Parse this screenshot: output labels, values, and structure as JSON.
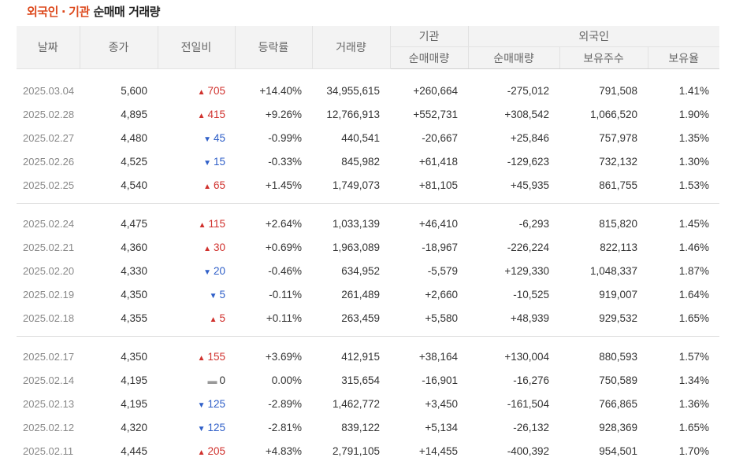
{
  "title": {
    "part1": "외국인",
    "dot": "·",
    "part2": "기관",
    "part3": "순매매 거래량"
  },
  "headers": {
    "date": "날짜",
    "close": "종가",
    "change": "전일비",
    "rate": "등락률",
    "volume": "거래량",
    "institution": "기관",
    "inst_net": "순매매량",
    "foreign": "외국인",
    "foreign_net": "순매매량",
    "foreign_hold": "보유주수",
    "foreign_ratio": "보유율"
  },
  "colors": {
    "up": "#d0312d",
    "down": "#2f5fc8",
    "title_accent": "#dd4a1e",
    "header_bg": "#f3f3f3"
  },
  "groups": [
    [
      {
        "date": "2025.03.04",
        "close": "5,600",
        "dir": "up",
        "change": "705",
        "rate": "+14.40%",
        "volume": "34,955,615",
        "inst": "+260,664",
        "foreign_net": "-275,012",
        "hold": "791,508",
        "ratio": "1.41%"
      },
      {
        "date": "2025.02.28",
        "close": "4,895",
        "dir": "up",
        "change": "415",
        "rate": "+9.26%",
        "volume": "12,766,913",
        "inst": "+552,731",
        "foreign_net": "+308,542",
        "hold": "1,066,520",
        "ratio": "1.90%"
      },
      {
        "date": "2025.02.27",
        "close": "4,480",
        "dir": "down",
        "change": "45",
        "rate": "-0.99%",
        "volume": "440,541",
        "inst": "-20,667",
        "foreign_net": "+25,846",
        "hold": "757,978",
        "ratio": "1.35%"
      },
      {
        "date": "2025.02.26",
        "close": "4,525",
        "dir": "down",
        "change": "15",
        "rate": "-0.33%",
        "volume": "845,982",
        "inst": "+61,418",
        "foreign_net": "-129,623",
        "hold": "732,132",
        "ratio": "1.30%"
      },
      {
        "date": "2025.02.25",
        "close": "4,540",
        "dir": "up",
        "change": "65",
        "rate": "+1.45%",
        "volume": "1,749,073",
        "inst": "+81,105",
        "foreign_net": "+45,935",
        "hold": "861,755",
        "ratio": "1.53%"
      }
    ],
    [
      {
        "date": "2025.02.24",
        "close": "4,475",
        "dir": "up",
        "change": "115",
        "rate": "+2.64%",
        "volume": "1,033,139",
        "inst": "+46,410",
        "foreign_net": "-6,293",
        "hold": "815,820",
        "ratio": "1.45%"
      },
      {
        "date": "2025.02.21",
        "close": "4,360",
        "dir": "up",
        "change": "30",
        "rate": "+0.69%",
        "volume": "1,963,089",
        "inst": "-18,967",
        "foreign_net": "-226,224",
        "hold": "822,113",
        "ratio": "1.46%"
      },
      {
        "date": "2025.02.20",
        "close": "4,330",
        "dir": "down",
        "change": "20",
        "rate": "-0.46%",
        "volume": "634,952",
        "inst": "-5,579",
        "foreign_net": "+129,330",
        "hold": "1,048,337",
        "ratio": "1.87%"
      },
      {
        "date": "2025.02.19",
        "close": "4,350",
        "dir": "down",
        "change": "5",
        "rate": "-0.11%",
        "volume": "261,489",
        "inst": "+2,660",
        "foreign_net": "-10,525",
        "hold": "919,007",
        "ratio": "1.64%"
      },
      {
        "date": "2025.02.18",
        "close": "4,355",
        "dir": "up",
        "change": "5",
        "rate": "+0.11%",
        "volume": "263,459",
        "inst": "+5,580",
        "foreign_net": "+48,939",
        "hold": "929,532",
        "ratio": "1.65%"
      }
    ],
    [
      {
        "date": "2025.02.17",
        "close": "4,350",
        "dir": "up",
        "change": "155",
        "rate": "+3.69%",
        "volume": "412,915",
        "inst": "+38,164",
        "foreign_net": "+130,004",
        "hold": "880,593",
        "ratio": "1.57%"
      },
      {
        "date": "2025.02.14",
        "close": "4,195",
        "dir": "flat",
        "change": "0",
        "rate": "0.00%",
        "volume": "315,654",
        "inst": "-16,901",
        "foreign_net": "-16,276",
        "hold": "750,589",
        "ratio": "1.34%"
      },
      {
        "date": "2025.02.13",
        "close": "4,195",
        "dir": "down",
        "change": "125",
        "rate": "-2.89%",
        "volume": "1,462,772",
        "inst": "+3,450",
        "foreign_net": "-161,504",
        "hold": "766,865",
        "ratio": "1.36%"
      },
      {
        "date": "2025.02.12",
        "close": "4,320",
        "dir": "down",
        "change": "125",
        "rate": "-2.81%",
        "volume": "839,122",
        "inst": "+5,134",
        "foreign_net": "-26,132",
        "hold": "928,369",
        "ratio": "1.65%"
      },
      {
        "date": "2025.02.11",
        "close": "4,445",
        "dir": "up",
        "change": "205",
        "rate": "+4.83%",
        "volume": "2,791,105",
        "inst": "+14,455",
        "foreign_net": "-400,392",
        "hold": "954,501",
        "ratio": "1.70%"
      }
    ]
  ]
}
